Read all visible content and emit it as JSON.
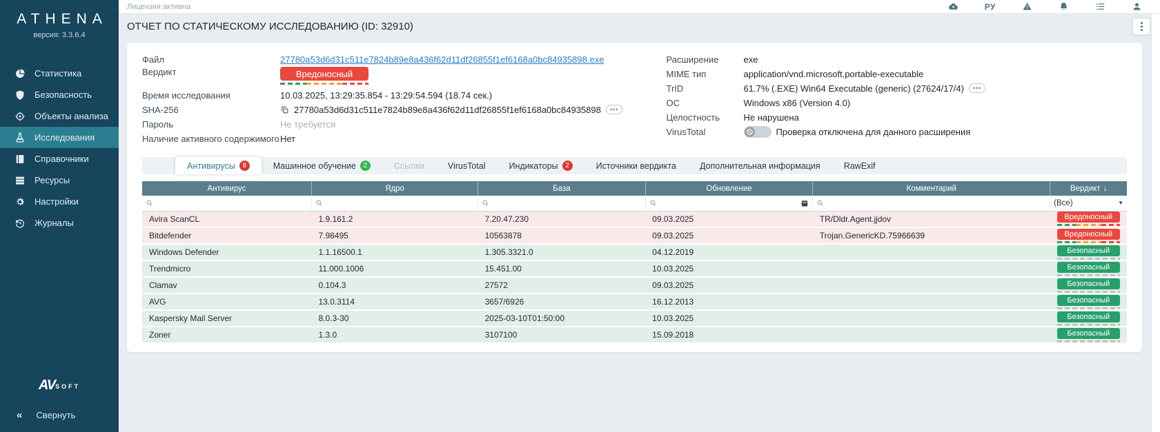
{
  "sidebar": {
    "logo": "ATHENA",
    "version": "версия: 3.3.6.4",
    "items": [
      {
        "key": "statistics",
        "label": "Статистика",
        "icon": "pie-chart-icon",
        "active": false
      },
      {
        "key": "security",
        "label": "Безопасность",
        "icon": "shield-icon",
        "active": false
      },
      {
        "key": "analysis-objects",
        "label": "Объекты анализа",
        "icon": "target-icon",
        "active": false
      },
      {
        "key": "investigations",
        "label": "Исследования",
        "icon": "flask-icon",
        "active": true
      },
      {
        "key": "directories",
        "label": "Справочники",
        "icon": "book-icon",
        "active": false
      },
      {
        "key": "resources",
        "label": "Ресурсы",
        "icon": "server-icon",
        "active": false
      },
      {
        "key": "settings",
        "label": "Настройки",
        "icon": "gear-icon",
        "active": false
      },
      {
        "key": "journals",
        "label": "Журналы",
        "icon": "history-icon",
        "active": false
      }
    ],
    "brand_av": "AV",
    "brand_soft": "SOFT",
    "collapse_label": "Свернуть",
    "collapse_chevrons": "«"
  },
  "topbar": {
    "license_status": "Лицензия активна",
    "actions": [
      {
        "name": "upload-button",
        "icon": "cloud-upload-icon"
      },
      {
        "name": "language-button",
        "text": "РУ"
      },
      {
        "name": "alerts-button",
        "icon": "warning-icon"
      },
      {
        "name": "notifications-button",
        "icon": "bell-icon"
      },
      {
        "name": "tasks-button",
        "icon": "tasks-icon"
      },
      {
        "name": "profile-button",
        "icon": "user-icon"
      }
    ]
  },
  "header": {
    "title": "ОТЧЕТ ПО СТАТИЧЕСКОМУ ИССЛЕДОВАНИЮ (ID: 32910)"
  },
  "info": {
    "file": {
      "label": "Файл",
      "value": "27780a53d6d31c511e7824b89e8a436f62d11df26855f1ef6168a0bc84935898.exe"
    },
    "verdict": {
      "label": "Вердикт",
      "value": "Вредоносный"
    },
    "time": {
      "label": "Время исследования",
      "value": "10.03.2025, 13:29:35.854 - 13:29:54.594 (18.74 сек.)"
    },
    "sha256": {
      "label": "SHA-256",
      "value": "27780a53d6d31c511e7824b89e8a436f62d11df26855f1ef6168a0bc84935898",
      "more": "•••"
    },
    "password": {
      "label": "Пароль",
      "value": "Не требуется"
    },
    "active_content": {
      "label": "Наличие активного содержимого",
      "value": "Нет"
    },
    "extension": {
      "label": "Расширение",
      "value": "exe"
    },
    "mime": {
      "label": "MIME тип",
      "value": "application/vnd.microsoft.portable-executable"
    },
    "trid": {
      "label": "TrID",
      "value": "61.7% (.EXE) Win64 Executable (generic) (27624/17/4)",
      "more": "•••"
    },
    "os": {
      "label": "ОС",
      "value": "Windows x86 (Version 4.0)"
    },
    "integrity": {
      "label": "Целостность",
      "value": "Не нарушена"
    },
    "virustotal": {
      "label": "VirusTotal",
      "value": "Проверка отключена для данного расширения"
    }
  },
  "tabs": [
    {
      "key": "antiviruses",
      "label": "Антивирусы",
      "badge": "8",
      "badge_color": "red",
      "active": true,
      "disabled": false
    },
    {
      "key": "machine-learning",
      "label": "Машинное обучение",
      "badge": "2",
      "badge_color": "green",
      "active": false,
      "disabled": false
    },
    {
      "key": "links",
      "label": "Ссылки",
      "active": false,
      "disabled": true
    },
    {
      "key": "virustotal",
      "label": "VirusTotal",
      "active": false,
      "disabled": false
    },
    {
      "key": "indicators",
      "label": "Индикаторы",
      "badge": "2",
      "badge_color": "red",
      "active": false,
      "disabled": false
    },
    {
      "key": "verdict-sources",
      "label": "Источники вердикта",
      "active": false,
      "disabled": false
    },
    {
      "key": "additional-info",
      "label": "Дополнительная информация",
      "active": false,
      "disabled": false
    },
    {
      "key": "rawexif",
      "label": "RawExif",
      "active": false,
      "disabled": false
    }
  ],
  "table": {
    "columns": [
      "Антивирус",
      "Ядро",
      "База",
      "Обновление",
      "Комментарий",
      "Вердикт"
    ],
    "sort_arrow": "↓",
    "filters": [
      {
        "type": "search"
      },
      {
        "type": "search"
      },
      {
        "type": "search"
      },
      {
        "type": "search",
        "calendar": true
      },
      {
        "type": "search"
      },
      {
        "type": "select",
        "value": "(Все)",
        "arrow": "▼"
      }
    ],
    "rows": [
      {
        "av": "Avira ScanCL",
        "core": "1.9.161.2",
        "base": "7.20.47.230",
        "updated": "09.03.2025",
        "comment": "TR/Dldr.Agent.jjdov",
        "verdict": "Вредоносный",
        "status": "malicious"
      },
      {
        "av": "Bitdefender",
        "core": "7.98495",
        "base": "10563878",
        "updated": "09.03.2025",
        "comment": "Trojan.GenericKD.75966639",
        "verdict": "Вредоносный",
        "status": "malicious"
      },
      {
        "av": "Windows Defender",
        "core": "1.1.16500.1",
        "base": "1.305.3321.0",
        "updated": "04.12.2019",
        "comment": "",
        "verdict": "Безопасный",
        "status": "safe"
      },
      {
        "av": "Trendmicro",
        "core": "11.000.1006",
        "base": "15.451.00",
        "updated": "10.03.2025",
        "comment": "",
        "verdict": "Безопасный",
        "status": "safe"
      },
      {
        "av": "Clamav",
        "core": "0.104.3",
        "base": "27572",
        "updated": "09.03.2025",
        "comment": "",
        "verdict": "Безопасный",
        "status": "safe"
      },
      {
        "av": "AVG",
        "core": "13.0.3114",
        "base": "3657/6926",
        "updated": "16.12.2013",
        "comment": "",
        "verdict": "Безопасный",
        "status": "safe"
      },
      {
        "av": "Kaspersky Mail Server",
        "core": "8.0.3-30",
        "base": "2025-03-10T01:50:00",
        "updated": "10.03.2025",
        "comment": "",
        "verdict": "Безопасный",
        "status": "safe"
      },
      {
        "av": "Zoner",
        "core": "1.3.0",
        "base": "3107100",
        "updated": "15.09.2018",
        "comment": "",
        "verdict": "Безопасный",
        "status": "safe"
      }
    ]
  },
  "colors": {
    "sidebar_bg": "#16455c",
    "accent_teal": "#2b7e8f",
    "malicious_red": "#e8483f",
    "safe_green": "#28a06c",
    "header_slate": "#5b7e8c",
    "page_bg": "#e9edf2"
  }
}
